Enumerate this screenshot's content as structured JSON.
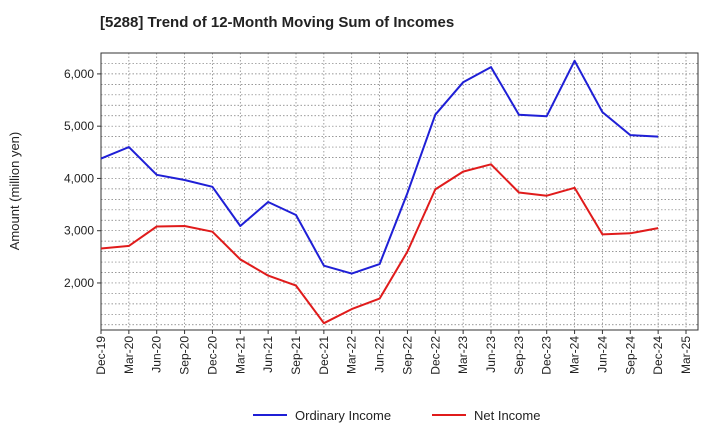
{
  "chart_data": {
    "type": "line",
    "title": "[5288]  Trend of 12-Month Moving Sum of Incomes",
    "xlabel": "",
    "ylabel": "Amount (million yen)",
    "ylim": [
      1100,
      6400
    ],
    "yticks": [
      2000,
      3000,
      4000,
      5000,
      6000
    ],
    "ytick_labels": [
      "2,000",
      "3,000",
      "4,000",
      "5,000",
      "6,000"
    ],
    "grid": true,
    "legend_position": "bottom-center",
    "categories": [
      "Dec-19",
      "Mar-20",
      "Jun-20",
      "Sep-20",
      "Dec-20",
      "Mar-21",
      "Jun-21",
      "Sep-21",
      "Dec-21",
      "Mar-22",
      "Jun-22",
      "Sep-22",
      "Dec-22",
      "Mar-23",
      "Jun-23",
      "Sep-23",
      "Dec-23",
      "Mar-24",
      "Jun-24",
      "Sep-24",
      "Dec-24",
      "Mar-25"
    ],
    "series": [
      {
        "name": "Ordinary Income",
        "color": "#1f1fd6",
        "values": [
          4380,
          4600,
          4070,
          3970,
          3840,
          3090,
          3550,
          3300,
          2330,
          2180,
          2360,
          3720,
          5220,
          5840,
          6130,
          5220,
          5190,
          6250,
          5270,
          4830,
          4800,
          null
        ]
      },
      {
        "name": "Net Income",
        "color": "#e01b1b",
        "values": [
          2660,
          2710,
          3080,
          3090,
          2980,
          2450,
          2140,
          1950,
          1230,
          1500,
          1700,
          2600,
          3790,
          4130,
          4270,
          3730,
          3670,
          3820,
          2930,
          2950,
          3050,
          null
        ]
      }
    ]
  }
}
